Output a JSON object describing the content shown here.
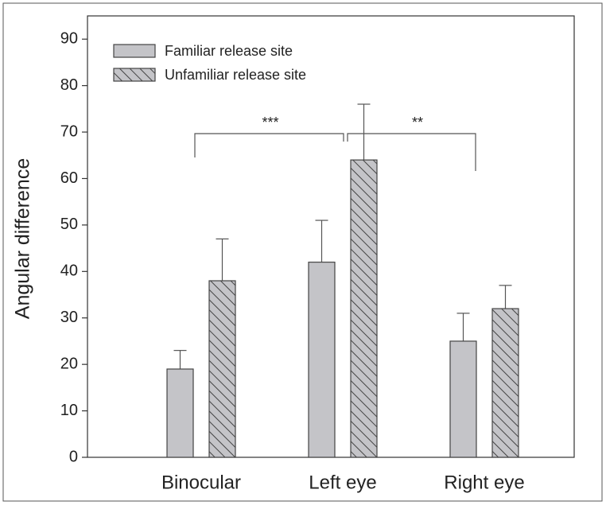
{
  "chart_data": {
    "type": "bar",
    "ylabel": "Angular difference",
    "categories": [
      "Binocular",
      "Left eye",
      "Right eye"
    ],
    "series": [
      {
        "name": "Familiar release site",
        "color": "#c4c4c8",
        "hatch": false,
        "values": [
          19,
          42,
          25
        ],
        "errors": [
          4,
          9,
          6
        ]
      },
      {
        "name": "Unfamiliar release site",
        "color": "#c4c4c8",
        "hatch": true,
        "values": [
          38,
          64,
          32
        ],
        "errors": [
          9,
          12,
          5
        ]
      }
    ],
    "annotations": [
      "***",
      "**"
    ],
    "ylim": [
      0,
      95
    ],
    "yticks": [
      0,
      10,
      20,
      30,
      40,
      50,
      60,
      70,
      80,
      90
    ],
    "grid": false
  }
}
